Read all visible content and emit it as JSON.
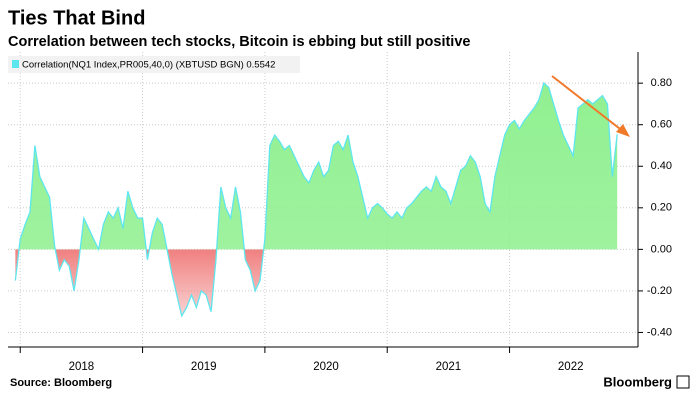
{
  "chart_data": {
    "type": "area",
    "title": "Ties That Bind",
    "subtitle": "Correlation between tech stocks, Bitcoin is ebbing but still positive",
    "source": "Source: Bloomberg",
    "brand": "Bloomberg",
    "x": [
      2017.96,
      2018.0,
      2018.04,
      2018.08,
      2018.12,
      2018.16,
      2018.2,
      2018.24,
      2018.28,
      2018.32,
      2018.36,
      2018.4,
      2018.44,
      2018.48,
      2018.52,
      2018.56,
      2018.6,
      2018.64,
      2018.68,
      2018.72,
      2018.76,
      2018.8,
      2018.84,
      2018.88,
      2018.92,
      2018.96,
      2019.0,
      2019.04,
      2019.08,
      2019.12,
      2019.16,
      2019.2,
      2019.24,
      2019.28,
      2019.32,
      2019.36,
      2019.4,
      2019.44,
      2019.48,
      2019.52,
      2019.56,
      2019.6,
      2019.64,
      2019.68,
      2019.72,
      2019.76,
      2019.8,
      2019.84,
      2019.88,
      2019.92,
      2019.96,
      2020.0,
      2020.04,
      2020.08,
      2020.12,
      2020.16,
      2020.2,
      2020.24,
      2020.28,
      2020.32,
      2020.36,
      2020.4,
      2020.44,
      2020.48,
      2020.52,
      2020.56,
      2020.6,
      2020.64,
      2020.68,
      2020.72,
      2020.76,
      2020.8,
      2020.84,
      2020.88,
      2020.92,
      2020.96,
      2021.0,
      2021.04,
      2021.08,
      2021.12,
      2021.16,
      2021.2,
      2021.24,
      2021.28,
      2021.32,
      2021.36,
      2021.4,
      2021.44,
      2021.48,
      2021.52,
      2021.56,
      2021.6,
      2021.64,
      2021.68,
      2021.72,
      2021.76,
      2021.8,
      2021.84,
      2021.88,
      2021.92,
      2021.96,
      2022.0,
      2022.04,
      2022.08,
      2022.12,
      2022.16,
      2022.2,
      2022.24,
      2022.28,
      2022.32,
      2022.36,
      2022.4,
      2022.44,
      2022.48,
      2022.52,
      2022.56,
      2022.6,
      2022.64,
      2022.68,
      2022.72,
      2022.76,
      2022.8,
      2022.84,
      2022.88
    ],
    "series": [
      {
        "name": "Correlation(NQ1 Index,PR005,40,0) (XBTUSD BGN) 0.5542",
        "color": "#5ee6ee",
        "values": [
          -0.15,
          0.05,
          0.12,
          0.18,
          0.5,
          0.35,
          0.3,
          0.25,
          0.02,
          -0.1,
          -0.05,
          -0.08,
          -0.2,
          -0.05,
          0.15,
          0.1,
          0.05,
          0.0,
          0.12,
          0.18,
          0.15,
          0.2,
          0.1,
          0.28,
          0.2,
          0.15,
          0.15,
          -0.05,
          0.08,
          0.15,
          0.12,
          0.0,
          -0.12,
          -0.22,
          -0.32,
          -0.28,
          -0.22,
          -0.28,
          -0.2,
          -0.22,
          -0.3,
          -0.05,
          0.3,
          0.2,
          0.15,
          0.3,
          0.18,
          -0.05,
          -0.1,
          -0.2,
          -0.15,
          0.05,
          0.5,
          0.55,
          0.52,
          0.48,
          0.5,
          0.45,
          0.4,
          0.35,
          0.32,
          0.38,
          0.42,
          0.35,
          0.38,
          0.5,
          0.52,
          0.48,
          0.55,
          0.42,
          0.35,
          0.25,
          0.15,
          0.2,
          0.22,
          0.2,
          0.17,
          0.15,
          0.18,
          0.15,
          0.2,
          0.22,
          0.25,
          0.28,
          0.3,
          0.28,
          0.35,
          0.3,
          0.28,
          0.22,
          0.3,
          0.38,
          0.4,
          0.45,
          0.42,
          0.35,
          0.22,
          0.18,
          0.35,
          0.45,
          0.55,
          0.6,
          0.62,
          0.58,
          0.62,
          0.65,
          0.68,
          0.72,
          0.8,
          0.78,
          0.7,
          0.62,
          0.55,
          0.5,
          0.45,
          0.68,
          0.7,
          0.72,
          0.7,
          0.72,
          0.74,
          0.7,
          0.35,
          0.5542
        ]
      }
    ],
    "positive_color": "#8ef08e",
    "negative_color": "#f08080",
    "xlim": [
      2017.9,
      2023.05
    ],
    "xticks": [
      {
        "value": 2018.5,
        "label": "2018"
      },
      {
        "value": 2019.5,
        "label": "2019"
      },
      {
        "value": 2020.5,
        "label": "2020"
      },
      {
        "value": 2021.5,
        "label": "2021"
      },
      {
        "value": 2022.5,
        "label": "2022"
      }
    ],
    "xgrid": [
      2018,
      2019,
      2020,
      2021,
      2022
    ],
    "ylim": [
      -0.47,
      0.95
    ],
    "yticks": [
      {
        "value": 0.8,
        "label": "0.80"
      },
      {
        "value": 0.6,
        "label": "0.60"
      },
      {
        "value": 0.4,
        "label": "0.40"
      },
      {
        "value": 0.2,
        "label": "0.20"
      },
      {
        "value": 0,
        "label": "0.00"
      },
      {
        "value": -0.2,
        "label": "-0.20"
      },
      {
        "value": -0.4,
        "label": "-0.40"
      }
    ],
    "grid": true
  }
}
